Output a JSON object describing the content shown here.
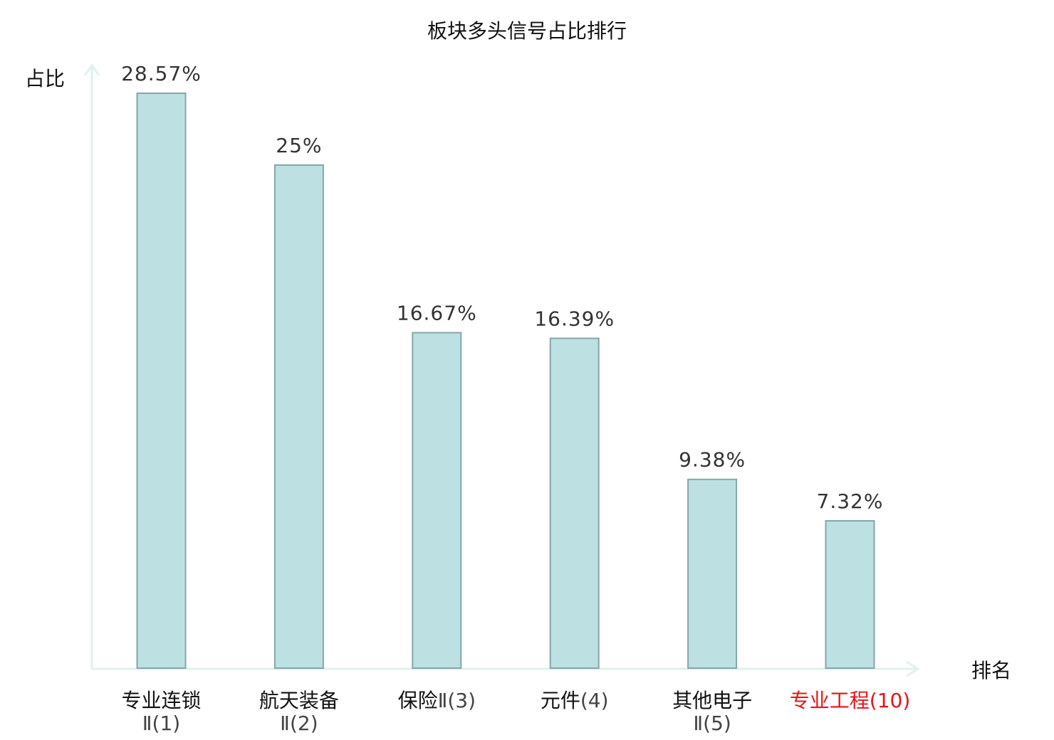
{
  "chart_data": {
    "type": "bar",
    "title": "板块多头信号占比排行",
    "xlabel": "排名",
    "ylabel": "占比",
    "ylim": [
      0,
      30
    ],
    "grid": false,
    "categories": [
      {
        "name": "专业连锁",
        "suffix": "Ⅱ(1)",
        "suffix_on_new_line": true,
        "highlight": false
      },
      {
        "name": "航天装备",
        "suffix": "Ⅱ(2)",
        "suffix_on_new_line": true,
        "highlight": false
      },
      {
        "name": "保险",
        "suffix": "Ⅱ(3)",
        "suffix_on_new_line": false,
        "highlight": false
      },
      {
        "name": "元件",
        "suffix": "(4)",
        "suffix_on_new_line": false,
        "highlight": false
      },
      {
        "name": "其他电子",
        "suffix": "Ⅱ(5)",
        "suffix_on_new_line": true,
        "highlight": false
      },
      {
        "name": "专业工程",
        "suffix": "(10)",
        "suffix_on_new_line": false,
        "highlight": true
      }
    ],
    "values": [
      28.57,
      25,
      16.67,
      16.39,
      9.38,
      7.32
    ],
    "value_labels": [
      "28.57%",
      "25%",
      "16.67%",
      "16.39%",
      "9.38%",
      "7.32%"
    ],
    "colors": {
      "bar_fill": "#bde0e3",
      "bar_stroke": "#86a6a9",
      "axis": "#dff1ee",
      "highlight_text": "#e8131b",
      "category_text": "#111111",
      "suffix_text": "#444444"
    }
  }
}
